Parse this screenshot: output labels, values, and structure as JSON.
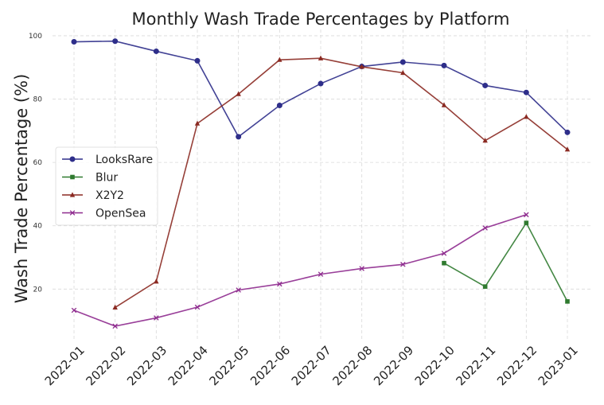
{
  "chart_data": {
    "type": "line",
    "title": "Monthly Wash Trade Percentages by Platform",
    "xlabel": "",
    "ylabel": "Wash Trade Percentage (%)",
    "categories": [
      "2022-01",
      "2022-02",
      "2022-03",
      "2022-04",
      "2022-05",
      "2022-06",
      "2022-07",
      "2022-08",
      "2022-09",
      "2022-10",
      "2022-11",
      "2022-12",
      "2023-01"
    ],
    "yticks": [
      20,
      40,
      60,
      80,
      100
    ],
    "ylim": [
      4,
      102
    ],
    "grid": true,
    "legend_position": "center-left",
    "series": [
      {
        "name": "LooksRare",
        "color": "#2e2e8a",
        "marker": "circle",
        "values": [
          98.1,
          98.3,
          95.1,
          92.1,
          68.1,
          78.0,
          84.9,
          90.3,
          91.7,
          90.6,
          84.3,
          82.1,
          69.5
        ]
      },
      {
        "name": "Blur",
        "color": "#2f7a2f",
        "marker": "square",
        "values": [
          null,
          null,
          null,
          null,
          null,
          null,
          null,
          null,
          null,
          28.2,
          20.8,
          40.9,
          16.1
        ]
      },
      {
        "name": "X2Y2",
        "color": "#8b2a22",
        "marker": "triangle",
        "values": [
          null,
          14.2,
          22.4,
          72.3,
          81.6,
          92.4,
          92.9,
          90.2,
          88.3,
          78.1,
          66.9,
          74.4,
          64.1
        ]
      },
      {
        "name": "OpenSea",
        "color": "#8e2a8e",
        "marker": "x",
        "values": [
          13.3,
          8.3,
          10.9,
          14.3,
          19.7,
          21.6,
          24.7,
          26.5,
          27.8,
          31.3,
          39.3,
          43.5,
          null
        ]
      }
    ]
  }
}
